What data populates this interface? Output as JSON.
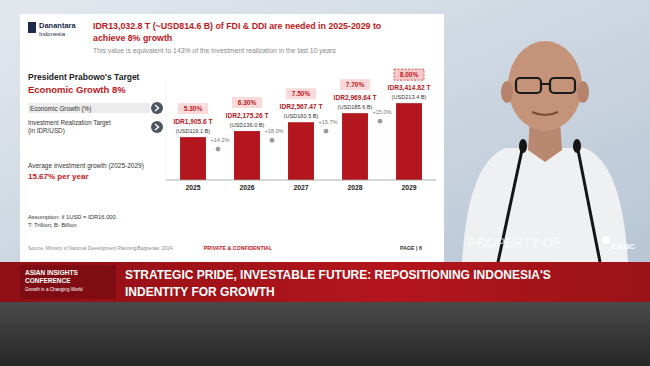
{
  "page": {
    "logo": [
      "Danantara",
      "Indonesia"
    ],
    "title": [
      "IDR13,032.8 T (~USD814.6 B) of FDI & DDI are needed in 2025-2029 to",
      "achieve 8% growth"
    ],
    "subtitle": "This value is equivalent to 143% of the investment realization in the last 10 years",
    "target_heading": "President Prabowo's Target",
    "target": "Economic Growth 8%",
    "average_label": "Average investment growth (2025-2029)",
    "average_value": "15.67% per year",
    "assumption": "Assumption: if 1USD = IDR16,000",
    "units": "T: Trillion; B: Billion",
    "source": "Source: Ministry of National Development Planning/Bappenas, 2024.",
    "confidential": "PRIVATE & CONFIDENTIAL",
    "page_number": "PAGE | 6",
    "watermark": "PROPERTY OF",
    "channel": "CNBC",
    "conference": [
      "ASIAN INSIGHTS",
      "CONFERENCE"
    ],
    "conference_tagline": "Growth in a Changing World",
    "headline": [
      "STRATEGIC PRIDE, INVESTABLE FUTURE: REPOSITIONING INDONESIA'S",
      "INDENTITY FOR GROWTH"
    ]
  },
  "chart_data": {
    "type": "bar",
    "categories": [
      "2025",
      "2026",
      "2027",
      "2028",
      "2029"
    ],
    "series": [
      {
        "name": "Investment Realization Target (in IDR/USD)",
        "color": "#b3161c",
        "values": [
          1905.6,
          2175.26,
          2567.47,
          2969.64,
          3414.82
        ],
        "value_labels": [
          "IDR1,905.6 T",
          "IDR2,175.26 T",
          "IDR2,567.47 T",
          "IDR2,969.64 T",
          "IDR3,414.82 T"
        ],
        "usd_values": [
          119.1,
          136.0,
          160.5,
          185.6,
          213.4
        ],
        "usd_labels": [
          "(USD119.1 B)",
          "(USD136.0 B)",
          "(USD160.5 B)",
          "(USD185.6 B)",
          "(USD213.4 B)"
        ]
      }
    ],
    "economic_growth": {
      "name": "Economic Growth (%)",
      "color": "#c0161c",
      "values": [
        5.3,
        6.3,
        7.5,
        7.7,
        8.0
      ],
      "value_labels": [
        "5.30%",
        "6.30%",
        "7.50%",
        "7.70%",
        "8.00%"
      ]
    },
    "growth_rates": {
      "values": [
        14.2,
        18.0,
        15.7,
        15.0
      ],
      "value_labels": [
        "+14.2%",
        "+18.0%",
        "+15.7%",
        "+15.0%"
      ]
    },
    "ylim": [
      0,
      4500
    ],
    "tick_labels": "x",
    "data_labels": true
  }
}
